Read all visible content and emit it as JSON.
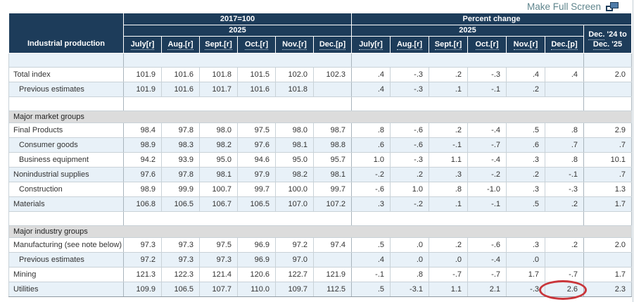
{
  "page": {
    "make_full_screen_label": "Make Full Screen"
  },
  "colors": {
    "header_bg": "#1d3c5a",
    "shade_row": "#e8f1f8",
    "section_bg": "#dcdcdc",
    "link": "#5f858d",
    "annotation_red": "#c9363b"
  },
  "table": {
    "corner_header": "Industrial production",
    "groups": {
      "index": "2017=100",
      "percent": "Percent change"
    },
    "year": "2025",
    "months": [
      "July[r]",
      "Aug.[r]",
      "Sept.[r]",
      "Oct.[r]",
      "Nov.[r]",
      "Dec.[p]"
    ],
    "change_col": {
      "abbr1": "Dec.",
      "rest1": " '24 to",
      "abbr2": "Dec.",
      "rest2": " '25"
    },
    "rows": [
      {
        "type": "spacer",
        "shade": true
      },
      {
        "type": "data",
        "label": "Total index",
        "indent": false,
        "shade": false,
        "index": [
          "101.9",
          "101.6",
          "101.8",
          "101.5",
          "102.0",
          "102.3"
        ],
        "pct": [
          ".4",
          "-.3",
          ".2",
          "-.3",
          ".4",
          ".4"
        ],
        "change": "2.0"
      },
      {
        "type": "data",
        "label": "Previous estimates",
        "indent": true,
        "shade": true,
        "index": [
          "101.9",
          "101.6",
          "101.7",
          "101.6",
          "101.8",
          ""
        ],
        "pct": [
          ".4",
          "-.3",
          ".1",
          "-.1",
          ".2",
          ""
        ],
        "change": ""
      },
      {
        "type": "spacer",
        "shade": false
      },
      {
        "type": "section",
        "label": "Major market groups"
      },
      {
        "type": "data",
        "label": "Final Products",
        "indent": false,
        "shade": false,
        "index": [
          "98.4",
          "97.8",
          "98.0",
          "97.5",
          "98.0",
          "98.7"
        ],
        "pct": [
          ".8",
          "-.6",
          ".2",
          "-.4",
          ".5",
          ".8"
        ],
        "change": "2.9"
      },
      {
        "type": "data",
        "label": "Consumer goods",
        "indent": true,
        "shade": true,
        "index": [
          "98.9",
          "98.3",
          "98.2",
          "97.6",
          "98.1",
          "98.8"
        ],
        "pct": [
          ".6",
          "-.6",
          "-.1",
          "-.7",
          ".6",
          ".7"
        ],
        "change": ".7"
      },
      {
        "type": "data",
        "label": "Business equipment",
        "indent": true,
        "shade": false,
        "index": [
          "94.2",
          "93.9",
          "95.0",
          "94.6",
          "95.0",
          "95.7"
        ],
        "pct": [
          "1.0",
          "-.3",
          "1.1",
          "-.4",
          ".3",
          ".8"
        ],
        "change": "10.1"
      },
      {
        "type": "data",
        "label": "Nonindustrial supplies",
        "indent": false,
        "shade": true,
        "index": [
          "97.6",
          "97.8",
          "98.1",
          "97.9",
          "98.2",
          "98.1"
        ],
        "pct": [
          "-.2",
          ".2",
          ".3",
          "-.2",
          ".2",
          "-.1"
        ],
        "change": ".7"
      },
      {
        "type": "data",
        "label": "Construction",
        "indent": true,
        "shade": false,
        "index": [
          "98.9",
          "99.9",
          "100.7",
          "99.7",
          "100.0",
          "99.7"
        ],
        "pct": [
          "-.6",
          "1.0",
          ".8",
          "-1.0",
          ".3",
          "-.3"
        ],
        "change": "1.3"
      },
      {
        "type": "data",
        "label": "Materials",
        "indent": false,
        "shade": true,
        "index": [
          "106.8",
          "106.5",
          "106.7",
          "106.5",
          "107.0",
          "107.2"
        ],
        "pct": [
          ".3",
          "-.2",
          ".1",
          "-.1",
          ".5",
          ".2"
        ],
        "change": "1.7"
      },
      {
        "type": "spacer",
        "shade": false
      },
      {
        "type": "section",
        "label": "Major industry groups"
      },
      {
        "type": "data",
        "label": "Manufacturing (see note below)",
        "indent": false,
        "shade": false,
        "index": [
          "97.3",
          "97.3",
          "97.5",
          "96.9",
          "97.2",
          "97.4"
        ],
        "pct": [
          ".5",
          ".0",
          ".2",
          "-.6",
          ".3",
          ".2"
        ],
        "change": "2.0"
      },
      {
        "type": "data",
        "label": "Previous estimates",
        "indent": true,
        "shade": true,
        "index": [
          "97.2",
          "97.3",
          "97.3",
          "96.9",
          "97.0",
          ""
        ],
        "pct": [
          ".4",
          ".0",
          ".0",
          "-.4",
          ".0",
          ""
        ],
        "change": ""
      },
      {
        "type": "data",
        "label": "Mining",
        "indent": false,
        "shade": false,
        "index": [
          "121.3",
          "122.3",
          "121.4",
          "120.6",
          "122.7",
          "121.9"
        ],
        "pct": [
          "-.1",
          ".8",
          "-.7",
          "-.7",
          "1.7",
          "-.7"
        ],
        "change": "1.7"
      },
      {
        "type": "data",
        "label": "Utilities",
        "indent": false,
        "shade": true,
        "index": [
          "109.9",
          "106.5",
          "107.7",
          "110.0",
          "109.7",
          "112.5"
        ],
        "pct": [
          ".5",
          "-3.1",
          "1.1",
          "2.1",
          "-.3",
          "2.6"
        ],
        "change": "2.3",
        "circled_pct_index": 5
      }
    ]
  },
  "annotation": {
    "shape": "red-ellipse",
    "row": "Utilities",
    "column": "Dec.[p] percent change",
    "value": "2.6"
  }
}
